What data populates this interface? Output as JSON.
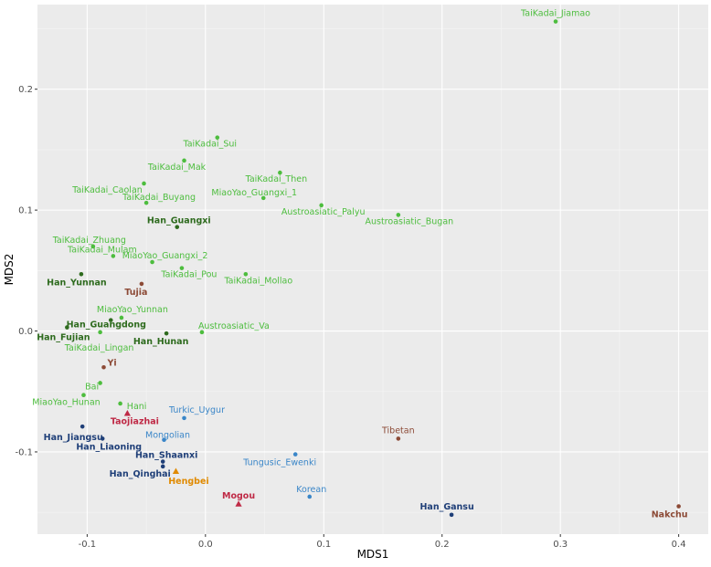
{
  "chart_data": {
    "type": "scatter",
    "title": "",
    "xlabel": "MDS1",
    "ylabel": "MDS2",
    "xlim": [
      -0.142,
      0.425
    ],
    "ylim": [
      -0.168,
      0.27
    ],
    "x_ticks": [
      -0.1,
      0.0,
      0.1,
      0.2,
      0.3,
      0.4
    ],
    "x_tick_labels": [
      "-0.1",
      "0.0",
      "0.1",
      "0.2",
      "0.3",
      "0.4"
    ],
    "y_ticks": [
      -0.1,
      0.0,
      0.1,
      0.2
    ],
    "y_tick_labels": [
      "-0.1",
      "0.0",
      "0.1",
      "0.2"
    ],
    "grid": true,
    "legend": "none",
    "colors": {
      "panel_bg": "#ebebeb",
      "grid_major": "#ffffff",
      "grid_minor": "#f5f5f5",
      "light_green": "#4dbd3e",
      "dark_green": "#2e6b1e",
      "brown": "#8c4a36",
      "crimson": "#bf2a46",
      "navy": "#1f3f78",
      "blue": "#3a86c8",
      "orange": "#e08a00"
    },
    "points": [
      {
        "label": "TaiKadai_Jiamao",
        "x": 0.296,
        "y": 0.256,
        "color": "light_green",
        "shape": "circle",
        "anchor": "middle",
        "dx": 0,
        "dy": -6
      },
      {
        "label": "TaiKadai_Sui",
        "x": 0.01,
        "y": 0.16,
        "color": "light_green",
        "shape": "circle",
        "anchor": "middle",
        "dx": -8,
        "dy": 10
      },
      {
        "label": "TaiKadai_Mak",
        "x": -0.018,
        "y": 0.141,
        "color": "light_green",
        "shape": "circle",
        "anchor": "middle",
        "dx": -8,
        "dy": 10
      },
      {
        "label": "TaiKadai_Then",
        "x": 0.063,
        "y": 0.131,
        "color": "light_green",
        "shape": "circle",
        "anchor": "middle",
        "dx": -4,
        "dy": 10
      },
      {
        "label": "TaiKadai_Caolan",
        "x": -0.052,
        "y": 0.122,
        "color": "light_green",
        "shape": "circle",
        "anchor": "middle",
        "dx": -40,
        "dy": 10
      },
      {
        "label": "MiaoYao_Guangxi_1",
        "x": 0.049,
        "y": 0.11,
        "color": "light_green",
        "shape": "circle",
        "anchor": "middle",
        "dx": -10,
        "dy": -3
      },
      {
        "label": "TaiKadai_Buyang",
        "x": -0.05,
        "y": 0.106,
        "color": "light_green",
        "shape": "circle",
        "anchor": "middle",
        "dx": 14,
        "dy": -3
      },
      {
        "label": "Austroasiatic_Palyu",
        "x": 0.098,
        "y": 0.104,
        "color": "light_green",
        "shape": "circle",
        "anchor": "middle",
        "dx": 2,
        "dy": 10
      },
      {
        "label": "Austroasiatic_Bugan",
        "x": 0.163,
        "y": 0.096,
        "color": "light_green",
        "shape": "circle",
        "anchor": "middle",
        "dx": 12,
        "dy": 10
      },
      {
        "label": "Han_Guangxi",
        "x": -0.024,
        "y": 0.086,
        "color": "dark_green",
        "shape": "circle",
        "anchor": "middle",
        "dx": 2,
        "dy": -4,
        "bold": true
      },
      {
        "label": "TaiKadai_Zhuang",
        "x": -0.095,
        "y": 0.07,
        "color": "light_green",
        "shape": "circle",
        "anchor": "middle",
        "dx": -4,
        "dy": -4
      },
      {
        "label": "TaiKadai_Mulam",
        "x": -0.078,
        "y": 0.062,
        "color": "light_green",
        "shape": "circle",
        "anchor": "middle",
        "dx": -12,
        "dy": -4
      },
      {
        "label": "MiaoYao_Guangxi_2",
        "x": -0.045,
        "y": 0.057,
        "color": "light_green",
        "shape": "circle",
        "anchor": "middle",
        "dx": 14,
        "dy": -4
      },
      {
        "label": "TaiKadai_Pou",
        "x": -0.02,
        "y": 0.052,
        "color": "light_green",
        "shape": "circle",
        "anchor": "middle",
        "dx": 8,
        "dy": 10
      },
      {
        "label": "Han_Yunnan",
        "x": -0.105,
        "y": 0.047,
        "color": "dark_green",
        "shape": "circle",
        "anchor": "middle",
        "dx": -5,
        "dy": 12,
        "bold": true
      },
      {
        "label": "TaiKadai_Mollao",
        "x": 0.034,
        "y": 0.047,
        "color": "light_green",
        "shape": "circle",
        "anchor": "middle",
        "dx": 14,
        "dy": 10
      },
      {
        "label": "Tujia",
        "x": -0.054,
        "y": 0.039,
        "color": "brown",
        "shape": "circle",
        "anchor": "middle",
        "dx": -6,
        "dy": 12,
        "bold": true
      },
      {
        "label": "MiaoYao_Yunnan",
        "x": -0.071,
        "y": 0.011,
        "color": "light_green",
        "shape": "circle",
        "anchor": "middle",
        "dx": 12,
        "dy": -6
      },
      {
        "label": "Han_Guangdong",
        "x": -0.08,
        "y": 0.009,
        "color": "dark_green",
        "shape": "circle",
        "anchor": "middle",
        "dx": -5,
        "dy": 8,
        "bold": true
      },
      {
        "label": "Han_Fujian",
        "x": -0.117,
        "y": 0.003,
        "color": "dark_green",
        "shape": "circle",
        "anchor": "middle",
        "dx": -4,
        "dy": 14,
        "bold": true
      },
      {
        "label": "Austroasiatic_Va",
        "x": -0.003,
        "y": -0.001,
        "color": "light_green",
        "shape": "circle",
        "anchor": "start",
        "dx": -4,
        "dy": -4
      },
      {
        "label": "Han_Hunan",
        "x": -0.033,
        "y": -0.002,
        "color": "dark_green",
        "shape": "circle",
        "anchor": "middle",
        "dx": -6,
        "dy": 12,
        "bold": true
      },
      {
        "label": "TaiKadai_Lingan",
        "x": -0.089,
        "y": -0.001,
        "color": "light_green",
        "shape": "circle",
        "anchor": "middle",
        "dx": -1,
        "dy": 20
      },
      {
        "label": "Yi",
        "x": -0.086,
        "y": -0.03,
        "color": "brown",
        "shape": "circle",
        "anchor": "start",
        "dx": 4,
        "dy": -2,
        "bold": true
      },
      {
        "label": "Bai",
        "x": -0.089,
        "y": -0.043,
        "color": "light_green",
        "shape": "circle",
        "anchor": "middle",
        "dx": -9,
        "dy": 7
      },
      {
        "label": "MiaoYao_Hunan",
        "x": -0.103,
        "y": -0.053,
        "color": "light_green",
        "shape": "circle",
        "anchor": "middle",
        "dx": -19,
        "dy": 11
      },
      {
        "label": "Hani",
        "x": -0.072,
        "y": -0.06,
        "color": "light_green",
        "shape": "circle",
        "anchor": "middle",
        "dx": 18,
        "dy": 6
      },
      {
        "label": "Turkic_Uygur",
        "x": -0.018,
        "y": -0.072,
        "color": "blue",
        "shape": "circle",
        "anchor": "middle",
        "dx": 14,
        "dy": -6
      },
      {
        "label": "Taojiazhai",
        "x": -0.066,
        "y": -0.068,
        "color": "crimson",
        "shape": "triangle",
        "anchor": "middle",
        "dx": 8,
        "dy": 12,
        "bold": true
      },
      {
        "label": "Han_Jiangsu",
        "x": -0.104,
        "y": -0.079,
        "color": "navy",
        "shape": "circle",
        "anchor": "middle",
        "dx": -10,
        "dy": 15,
        "bold": true
      },
      {
        "label": "Mongolian",
        "x": -0.035,
        "y": -0.09,
        "color": "blue",
        "shape": "circle",
        "anchor": "middle",
        "dx": 4,
        "dy": -2
      },
      {
        "label": "Tibetan",
        "x": 0.163,
        "y": -0.089,
        "color": "brown",
        "shape": "circle",
        "anchor": "middle",
        "dx": 0,
        "dy": -6
      },
      {
        "label": "Han_Liaoning",
        "x": -0.087,
        "y": -0.089,
        "color": "navy",
        "shape": "circle",
        "anchor": "middle",
        "dx": 7,
        "dy": 12,
        "bold": true
      },
      {
        "label": "Tungusic_Ewenki",
        "x": 0.076,
        "y": -0.102,
        "color": "blue",
        "shape": "circle",
        "anchor": "middle",
        "dx": -17,
        "dy": 12
      },
      {
        "label": "Han_Shaanxi",
        "x": -0.036,
        "y": -0.108,
        "color": "navy",
        "shape": "circle",
        "anchor": "middle",
        "dx": 4,
        "dy": -4,
        "bold": true
      },
      {
        "label": "Han_Qinghai",
        "x": -0.036,
        "y": -0.112,
        "color": "navy",
        "shape": "circle",
        "anchor": "middle",
        "dx": -25,
        "dy": 11,
        "bold": true
      },
      {
        "label": "Hengbei",
        "x": -0.025,
        "y": -0.116,
        "color": "orange",
        "shape": "triangle",
        "anchor": "middle",
        "dx": 14,
        "dy": 14,
        "bold": true
      },
      {
        "label": "Korean",
        "x": 0.088,
        "y": -0.137,
        "color": "blue",
        "shape": "circle",
        "anchor": "middle",
        "dx": 2,
        "dy": -5
      },
      {
        "label": "Mogou",
        "x": 0.028,
        "y": -0.143,
        "color": "crimson",
        "shape": "triangle",
        "anchor": "middle",
        "dx": 0,
        "dy": -6,
        "bold": true
      },
      {
        "label": "Han_Gansu",
        "x": 0.208,
        "y": -0.152,
        "color": "navy",
        "shape": "circle",
        "anchor": "middle",
        "dx": -5,
        "dy": -6,
        "bold": true
      },
      {
        "label": "Nakchu",
        "x": 0.4,
        "y": -0.145,
        "color": "brown",
        "shape": "circle",
        "anchor": "middle",
        "dx": -10,
        "dy": 12,
        "bold": true
      }
    ]
  }
}
